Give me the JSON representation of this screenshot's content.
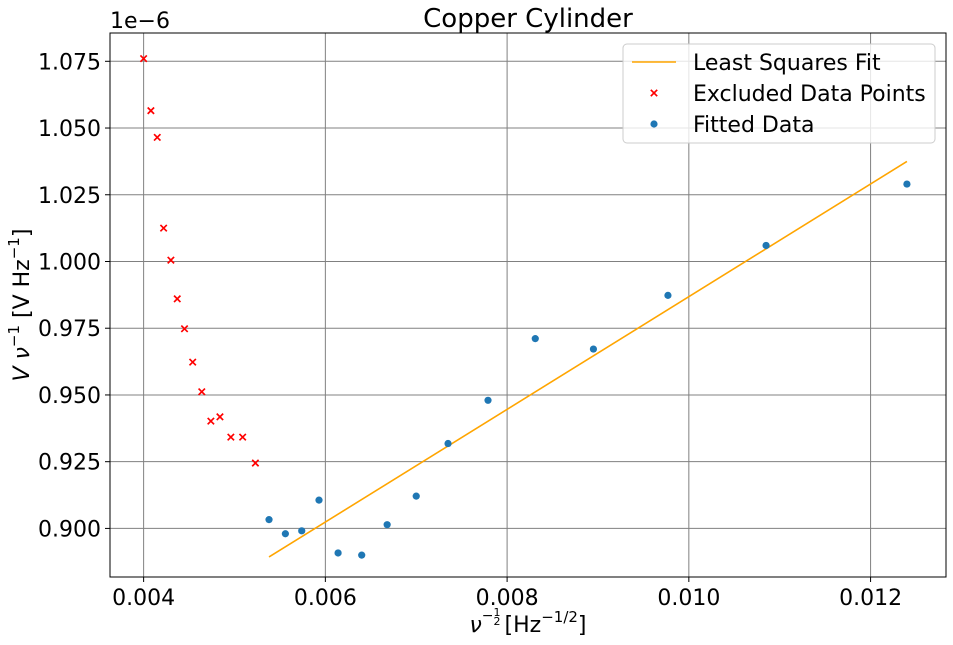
{
  "chart_data": {
    "type": "scatter",
    "title": "Copper Cylinder",
    "xlabel": {
      "base": "ν",
      "exp_num": "1",
      "exp_den": "2",
      "exp_sign": "−",
      "unit": "[Hz",
      "unit_exp": "−1/2",
      "unit_close": "]"
    },
    "ylabel": {
      "pre": "V ν",
      "exp": "−1",
      "unit": " [V Hz",
      "unit_exp": "−1",
      "unit_close": "]"
    },
    "y_offset_text": "1e−6",
    "xlim": [
      0.00363,
      0.01283
    ],
    "ylim": [
      0.8818,
      1.0856
    ],
    "x_ticks": [
      0.004,
      0.006,
      0.008,
      0.01,
      0.012
    ],
    "x_tick_labels": [
      "0.004",
      "0.006",
      "0.008",
      "0.010",
      "0.012"
    ],
    "y_ticks": [
      0.9,
      0.925,
      0.95,
      0.975,
      1.0,
      1.025,
      1.05,
      1.075
    ],
    "y_tick_labels": [
      "0.900",
      "0.925",
      "0.950",
      "0.975",
      "1.000",
      "1.025",
      "1.050",
      "1.075"
    ],
    "grid": true,
    "legend_position": "top-right",
    "series": [
      {
        "name": "Least Squares Fit",
        "kind": "line",
        "color": "#FFA500",
        "x": [
          0.00538,
          0.0124
        ],
        "y": [
          0.8893,
          1.0375
        ]
      },
      {
        "name": "Excluded Data Points",
        "kind": "x-marker",
        "color": "#FF0000",
        "x": [
          0.004,
          0.00408,
          0.00415,
          0.00422,
          0.0043,
          0.00437,
          0.00445,
          0.00454,
          0.00464,
          0.00474,
          0.00484,
          0.00496,
          0.00509,
          0.00523
        ],
        "y": [
          1.076,
          1.0565,
          1.0465,
          1.0125,
          1.0005,
          0.986,
          0.9748,
          0.9623,
          0.9512,
          0.9402,
          0.9418,
          0.9342,
          0.9342,
          0.9245
        ]
      },
      {
        "name": "Fitted Data",
        "kind": "dot",
        "color": "#1F77B4",
        "x": [
          0.00538,
          0.00556,
          0.00574,
          0.00593,
          0.00614,
          0.0064,
          0.00668,
          0.007,
          0.00735,
          0.00779,
          0.00831,
          0.00895,
          0.00977,
          0.01085,
          0.0124
        ],
        "y": [
          0.9033,
          0.898,
          0.8991,
          0.9106,
          0.8908,
          0.89,
          0.9014,
          0.9121,
          0.9318,
          0.948,
          0.9711,
          0.9672,
          0.9873,
          1.006,
          1.029
        ]
      }
    ]
  }
}
